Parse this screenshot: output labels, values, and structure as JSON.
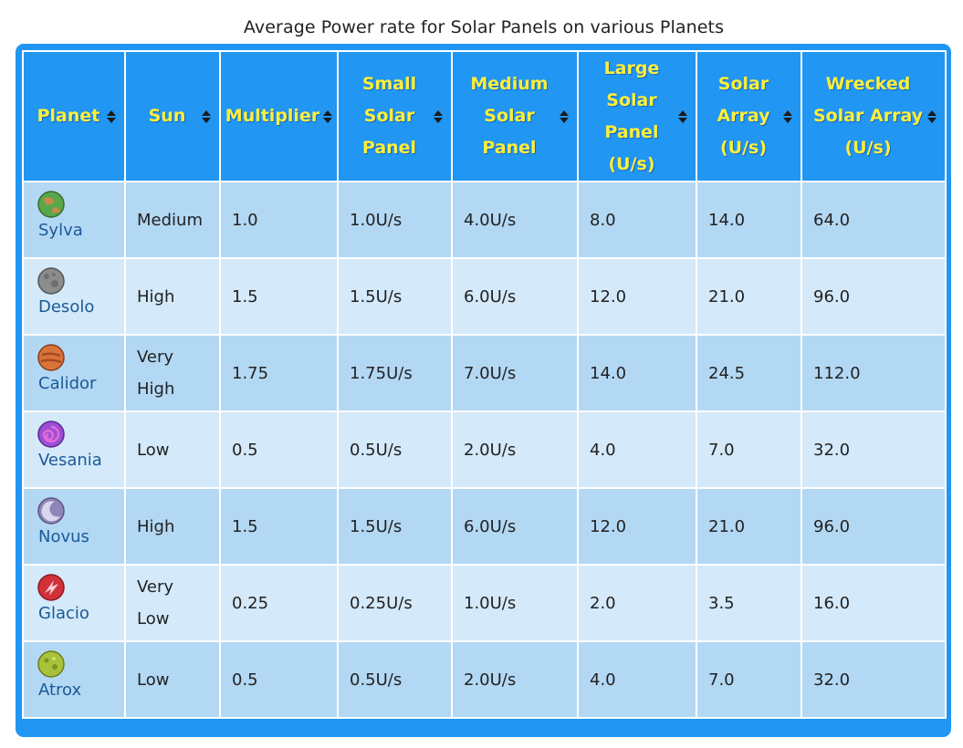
{
  "caption": "Average Power rate for Solar Panels on various Planets",
  "headers": [
    {
      "lines": [
        "Planet"
      ]
    },
    {
      "lines": [
        "Sun"
      ]
    },
    {
      "lines": [
        "Multiplier"
      ]
    },
    {
      "lines": [
        "Small",
        "Solar",
        "Panel"
      ]
    },
    {
      "lines": [
        "Medium",
        "Solar",
        "Panel"
      ]
    },
    {
      "lines": [
        "Large",
        "Solar",
        "Panel",
        "(U/s)"
      ]
    },
    {
      "lines": [
        "Solar",
        "Array",
        "(U/s)"
      ]
    },
    {
      "lines": [
        "Wrecked",
        "Solar Array",
        "(U/s)"
      ]
    }
  ],
  "rows": [
    {
      "planet": "Sylva",
      "icon": "sylva-planet-icon",
      "icon_color": "#5aa64a",
      "sun": [
        "Medium"
      ],
      "multiplier": "1.0",
      "small": "1.0U/s",
      "medium": "4.0U/s",
      "large": "8.0",
      "array": "14.0",
      "wrecked": "64.0"
    },
    {
      "planet": "Desolo",
      "icon": "desolo-planet-icon",
      "icon_color": "#8c8c8c",
      "sun": [
        "High"
      ],
      "multiplier": "1.5",
      "small": "1.5U/s",
      "medium": "6.0U/s",
      "large": "12.0",
      "array": "21.0",
      "wrecked": "96.0"
    },
    {
      "planet": "Calidor",
      "icon": "calidor-planet-icon",
      "icon_color": "#d9733a",
      "sun": [
        "Very",
        "High"
      ],
      "multiplier": "1.75",
      "small": "1.75U/s",
      "medium": "7.0U/s",
      "large": "14.0",
      "array": "24.5",
      "wrecked": "112.0"
    },
    {
      "planet": "Vesania",
      "icon": "vesania-planet-icon",
      "icon_color": "#9b4fd6",
      "sun": [
        "Low"
      ],
      "multiplier": "0.5",
      "small": "0.5U/s",
      "medium": "2.0U/s",
      "large": "4.0",
      "array": "7.0",
      "wrecked": "32.0"
    },
    {
      "planet": "Novus",
      "icon": "novus-planet-icon",
      "icon_color": "#8f86b8",
      "sun": [
        "High"
      ],
      "multiplier": "1.5",
      "small": "1.5U/s",
      "medium": "6.0U/s",
      "large": "12.0",
      "array": "21.0",
      "wrecked": "96.0"
    },
    {
      "planet": "Glacio",
      "icon": "glacio-planet-icon",
      "icon_color": "#d2313a",
      "sun": [
        "Very",
        "Low"
      ],
      "multiplier": "0.25",
      "small": "0.25U/s",
      "medium": "1.0U/s",
      "large": "2.0",
      "array": "3.5",
      "wrecked": "16.0"
    },
    {
      "planet": "Atrox",
      "icon": "atrox-planet-icon",
      "icon_color": "#a9c23a",
      "sun": [
        "Low"
      ],
      "multiplier": "0.5",
      "small": "0.5U/s",
      "medium": "2.0U/s",
      "large": "4.0",
      "array": "7.0",
      "wrecked": "32.0"
    }
  ]
}
